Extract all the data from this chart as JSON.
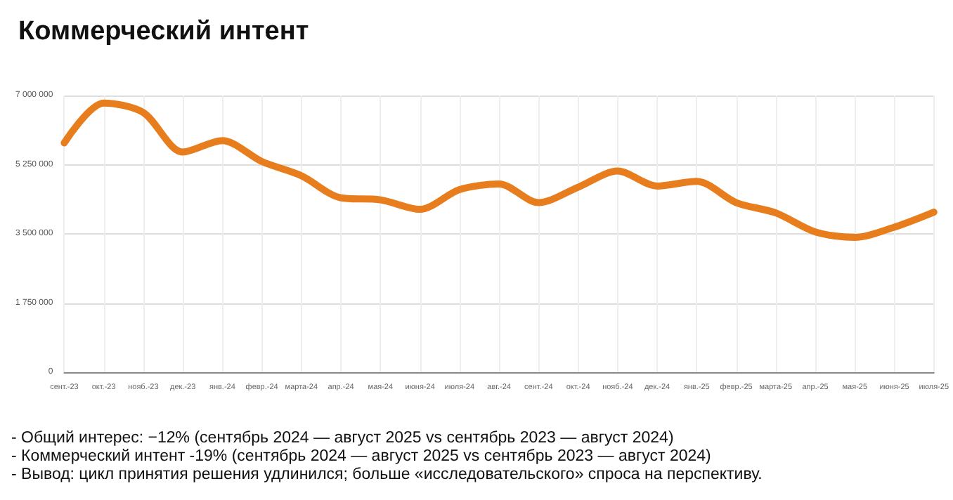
{
  "chart_data": {
    "type": "line",
    "title": "Коммерческий интент",
    "categories": [
      "сент.-23",
      "окт.-23",
      "нояб.-23",
      "дек.-23",
      "янв.-24",
      "февр.-24",
      "марта-24",
      "апр.-24",
      "мая-24",
      "июня-24",
      "июля-24",
      "авг.-24",
      "сент.-24",
      "окт.-24",
      "нояб.-24",
      "дек.-24",
      "янв.-25",
      "февр.-25",
      "марта-25",
      "апр.-25",
      "мая-25",
      "июня-25",
      "июля-25"
    ],
    "series": [
      {
        "color": "#e87d1e",
        "values": [
          5800000,
          6810000,
          6570000,
          5570000,
          5860000,
          5330000,
          4970000,
          4410000,
          4360000,
          4120000,
          4620000,
          4760000,
          4290000,
          4680000,
          5090000,
          4710000,
          4830000,
          4290000,
          4030000,
          3550000,
          3410000,
          3670000,
          4050000
        ]
      }
    ],
    "ylim": [
      0,
      7000000
    ],
    "yticks": [
      {
        "value": 0,
        "label": "0"
      },
      {
        "value": 1750000,
        "label": "1 750 000"
      },
      {
        "value": 3500000,
        "label": "3 500 000"
      },
      {
        "value": 5250000,
        "label": "5 250 000"
      },
      {
        "value": 7000000,
        "label": "7 000 000"
      }
    ],
    "grid": true,
    "marker": "none",
    "line_style": "solid",
    "annotations": [
      "- Общий интерес: −12% (сентябрь 2024 — август 2025 vs сентябрь 2023 — август 2024)",
      "- Коммерческий интент -19% (сентябрь 2024 — август 2025 vs сентябрь 2023 — август 2024)",
      "- Вывод: цикл принятия решения удлинился; больше «исследовательского» спроса на перспективу."
    ]
  }
}
